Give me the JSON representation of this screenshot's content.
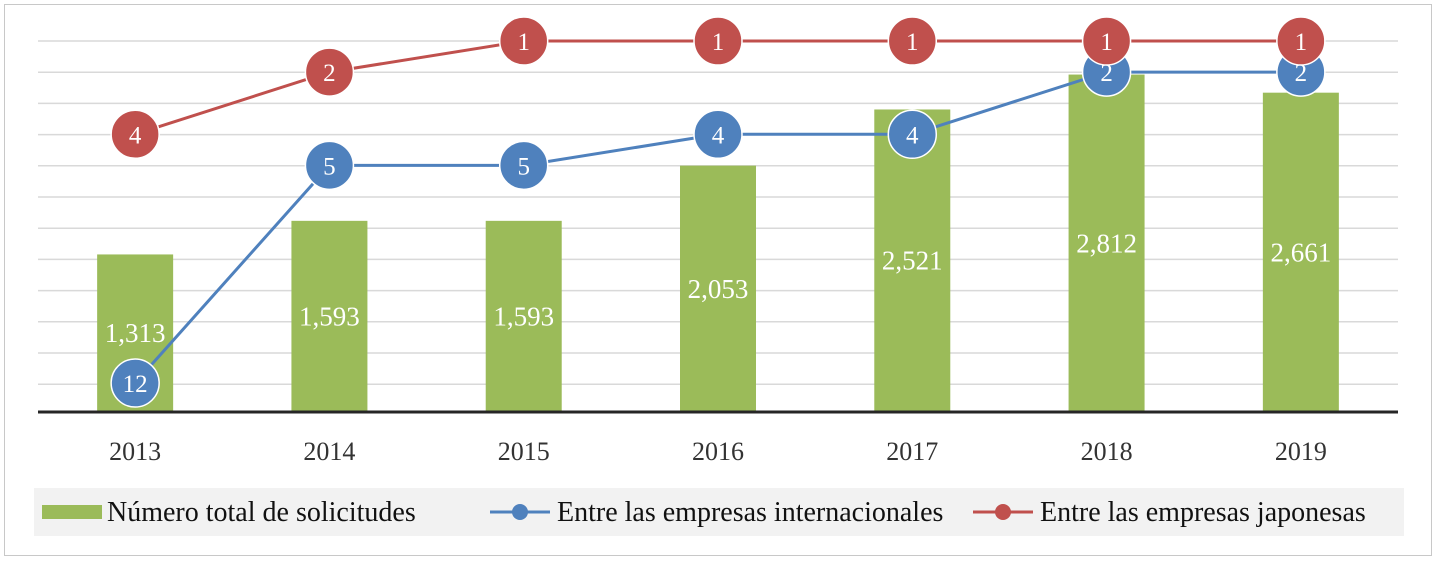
{
  "chart_data": {
    "type": "bar",
    "categories": [
      "2013",
      "2014",
      "2015",
      "2016",
      "2017",
      "2018",
      "2019"
    ],
    "bars": {
      "name": "Número total de solicitudes",
      "values": [
        1313,
        1593,
        1593,
        2053,
        2521,
        2812,
        2661
      ],
      "labels": [
        "1,313",
        "1,593",
        "1,593",
        "2,053",
        "2,521",
        "2,812",
        "2,661"
      ],
      "color": "#9bbb59"
    },
    "series": [
      {
        "name": "Entre las empresas internacionales",
        "type": "line",
        "values": [
          12,
          5,
          5,
          4,
          4,
          2,
          2
        ],
        "labels": [
          "12",
          "5",
          "5",
          "4",
          "4",
          "2",
          "2"
        ],
        "color": "#4f81bd"
      },
      {
        "name": "Entre las empresas japonesas",
        "type": "line",
        "values": [
          4,
          2,
          1,
          1,
          1,
          1,
          1
        ],
        "labels": [
          "4",
          "2",
          "1",
          "1",
          "1",
          "1",
          "1"
        ],
        "color": "#c0504d"
      }
    ],
    "bar_ylim": [
      0,
      3000
    ],
    "line_axis": "reversed rank",
    "line_ylim": [
      1,
      12
    ],
    "grid": true,
    "legend_position": "bottom"
  }
}
